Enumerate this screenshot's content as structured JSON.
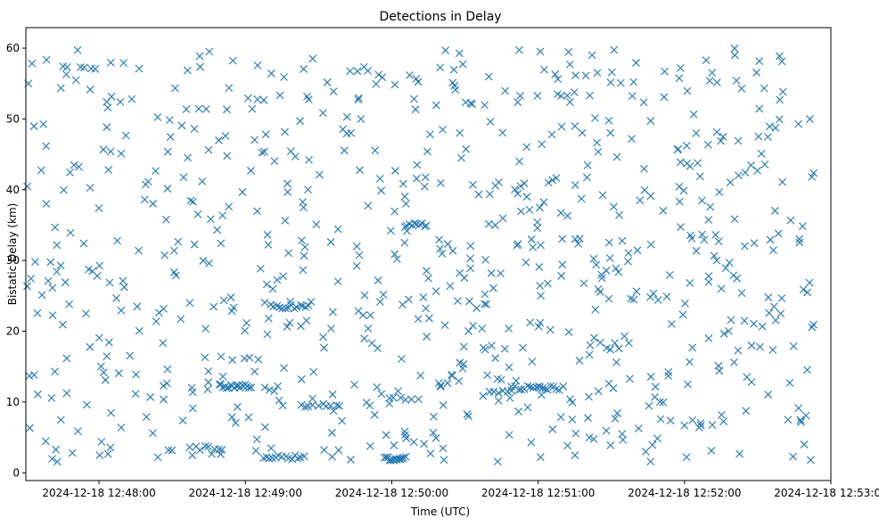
{
  "chart_data": {
    "type": "scatter",
    "title": "Detections in Delay",
    "xlabel": "Time (UTC)",
    "ylabel": "Bistatic Delay (km)",
    "x_unit": "seconds after 2024-12-18 12:47:30",
    "xlim": [
      0,
      330
    ],
    "ylim": [
      -1.1,
      62.9
    ],
    "x_ticks": [
      30,
      90,
      150,
      210,
      270,
      330
    ],
    "x_tick_labels": [
      "2024-12-18 12:48:00",
      "2024-12-18 12:49:00",
      "2024-12-18 12:50:00",
      "2024-12-18 12:51:00",
      "2024-12-18 12:52:00",
      "2024-12-18 12:53:00"
    ],
    "y_ticks": [
      0,
      10,
      20,
      30,
      40,
      50,
      60
    ],
    "y_tick_labels": [
      "0",
      "10",
      "20",
      "30",
      "40",
      "50",
      "60"
    ],
    "marker": "x",
    "color": "#1f77b4",
    "grid": false,
    "series": [
      {
        "name": "Detections",
        "count": 900,
        "x_range": [
          0.5,
          323
        ],
        "y_range": [
          1.5,
          60
        ],
        "clusters": [
          {
            "x": [
              79,
              93
            ],
            "y": 12.2,
            "n": 18
          },
          {
            "x": [
              100,
              117
            ],
            "y": 23.5,
            "n": 14
          },
          {
            "x": [
              97,
              115
            ],
            "y": 2.2,
            "n": 14
          },
          {
            "x": [
              112,
              130
            ],
            "y": 9.5,
            "n": 10
          },
          {
            "x": [
              147,
              156
            ],
            "y": 2.0,
            "n": 14
          },
          {
            "x": [
              199,
              221
            ],
            "y": 12.0,
            "n": 18
          },
          {
            "x": [
              67,
              82
            ],
            "y": 3.5,
            "n": 8
          },
          {
            "x": [
              155,
              165
            ],
            "y": 35.0,
            "n": 10
          },
          {
            "x": [
              148,
              162
            ],
            "y": 10.5,
            "n": 6
          },
          {
            "x": [
              190,
              200
            ],
            "y": 11.5,
            "n": 6
          }
        ]
      }
    ]
  }
}
